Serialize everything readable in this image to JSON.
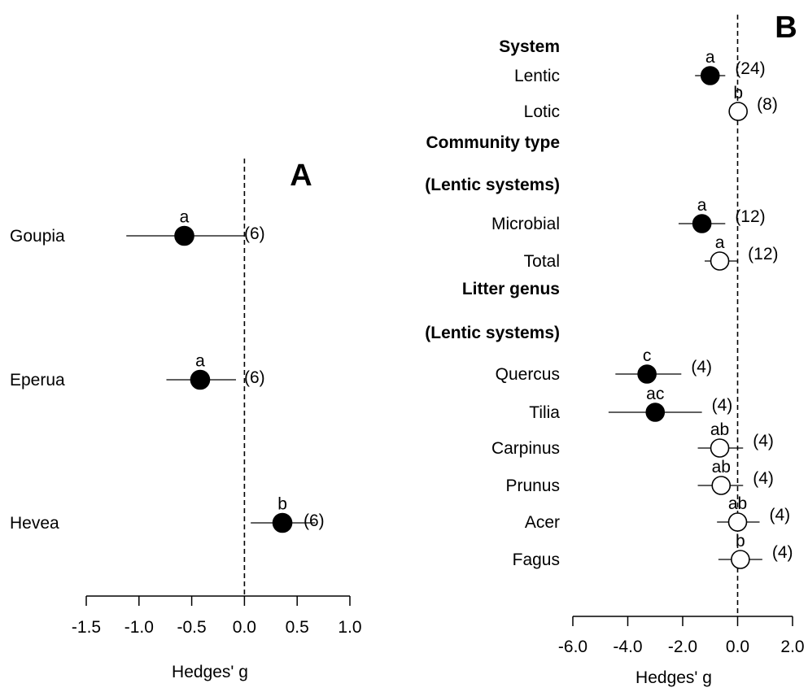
{
  "chart_data": [
    {
      "type": "scatter",
      "panel_label": "A",
      "xlabel": "Hedges' g",
      "xlim": [
        -1.5,
        1.0
      ],
      "xticks": [
        "-1.5",
        "-1.0",
        "-0.5",
        "0.0",
        "0.5",
        "1.0"
      ],
      "reference_line": 0,
      "rows": [
        {
          "label": "Goupia",
          "mean": -0.57,
          "lower": -1.12,
          "upper": 0.0,
          "letter": "a",
          "n": "(6)",
          "filled": true
        },
        {
          "label": "Eperua",
          "mean": -0.42,
          "lower": -0.74,
          "upper": -0.08,
          "letter": "a",
          "n": "(6)",
          "filled": true
        },
        {
          "label": "Hevea",
          "mean": 0.36,
          "lower": 0.06,
          "upper": 0.67,
          "letter": "b",
          "n": "(6)",
          "filled": true
        }
      ]
    },
    {
      "type": "scatter",
      "panel_label": "B",
      "xlabel": "Hedges' g",
      "xlim": [
        -6.0,
        2.0
      ],
      "xticks": [
        "-6.0",
        "-4.0",
        "-2.0",
        "0.0",
        "2.0"
      ],
      "reference_line": 0,
      "rows": [
        {
          "label": "System",
          "heading": true
        },
        {
          "label": "Lentic",
          "mean": -1.0,
          "lower": -1.55,
          "upper": -0.45,
          "letter": "a",
          "n": "(24)",
          "filled": true
        },
        {
          "label": "Lotic",
          "mean": 0.02,
          "lower": -0.1,
          "upper": 0.14,
          "letter": "b",
          "n": "(8)",
          "filled": false
        },
        {
          "label": "Community  type",
          "heading": true
        },
        {
          "label": "(Lentic systems)",
          "heading": true
        },
        {
          "label": "Microbial",
          "mean": -1.3,
          "lower": -2.15,
          "upper": -0.45,
          "letter": "a",
          "n": "(12)",
          "filled": true
        },
        {
          "label": "Total",
          "mean": -0.65,
          "lower": -1.2,
          "upper": 0.02,
          "letter": "a",
          "n": "(12)",
          "filled": false
        },
        {
          "label": "Litter genus",
          "heading": true
        },
        {
          "label": "(Lentic systems)",
          "heading": true
        },
        {
          "label": "Quercus",
          "mean": -3.3,
          "lower": -4.45,
          "upper": -2.05,
          "letter": "c",
          "n": "(4)",
          "filled": true
        },
        {
          "label": "Tilia",
          "mean": -3.0,
          "lower": -4.7,
          "upper": -1.3,
          "letter": "ac",
          "n": "(4)",
          "filled": true
        },
        {
          "label": "Carpinus",
          "mean": -0.65,
          "lower": -1.45,
          "upper": 0.2,
          "letter": "ab",
          "n": "(4)",
          "filled": false
        },
        {
          "label": "Prunus",
          "mean": -0.6,
          "lower": -1.45,
          "upper": 0.2,
          "letter": "ab",
          "n": "(4)",
          "filled": false
        },
        {
          "label": "Acer",
          "mean": 0.0,
          "lower": -0.75,
          "upper": 0.8,
          "letter": "ab",
          "n": "(4)",
          "filled": false
        },
        {
          "label": "Fagus",
          "mean": 0.1,
          "lower": -0.7,
          "upper": 0.9,
          "letter": "b",
          "n": "(4)",
          "filled": false
        }
      ]
    }
  ]
}
